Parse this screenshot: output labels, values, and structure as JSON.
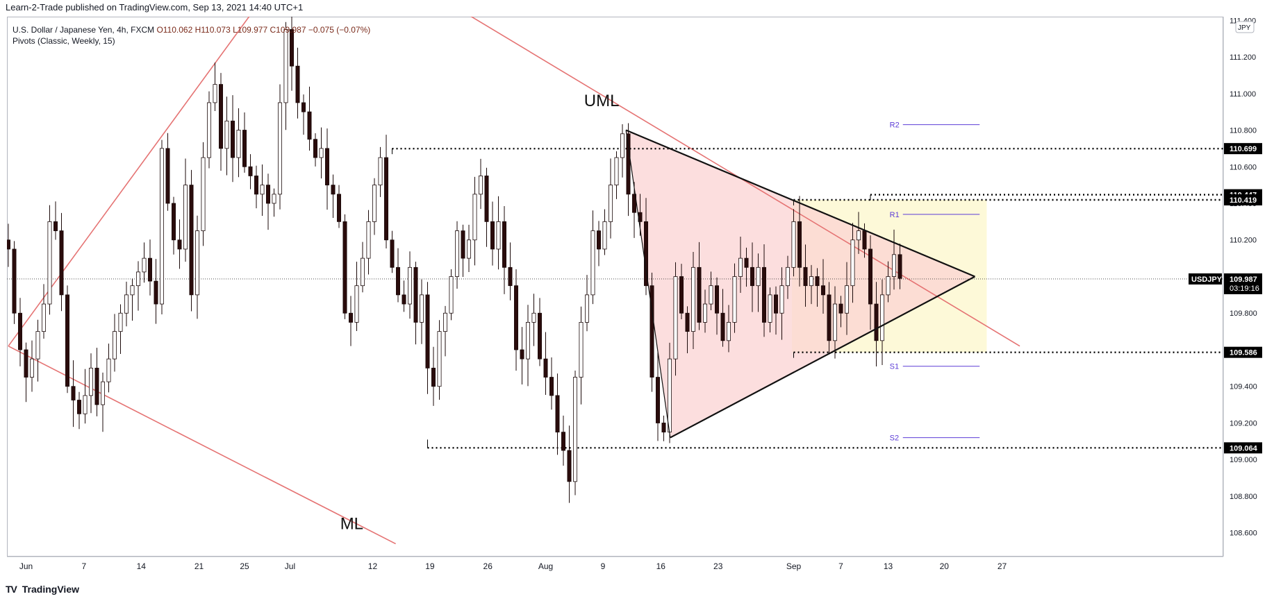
{
  "publisher_line": "Learn-2-Trade published on TradingView.com, Sep 13, 2021 14:40 UTC+1",
  "legend": {
    "symbol_line": "U.S. Dollar / Japanese Yen, 4h, FXCM",
    "ohlc_line": "O110.062  H110.073  L109.977  C109.987  −0.075 (−0.07%)",
    "indicator_line": "Pivots (Classic, Weekly, 15)"
  },
  "currency_badge": "JPY",
  "footer": {
    "logo_glyph": "TV",
    "brand": "TradingView"
  },
  "annotations": {
    "upper_median_line": "UML",
    "median_line": "ML"
  },
  "colors": {
    "bull": "#ffffff",
    "bear": "#2a0c0c",
    "wick": "#1b0a0a",
    "channel": "#e57373",
    "triangle_fill": "#fbd3d3",
    "box_fill": "#fdf9d8",
    "pivot": "#5b3bd6",
    "price_tag": "#000000"
  },
  "chart_data": {
    "type": "candlestick",
    "symbol": "USDJPY",
    "timeframe": "4h",
    "y_range": [
      108.47,
      111.42
    ],
    "y_ticks": [
      "108.600",
      "108.800",
      "109.000",
      "109.200",
      "109.400",
      "109.600",
      "109.800",
      "110.000",
      "110.200",
      "110.400",
      "110.600",
      "110.800",
      "111.000",
      "111.200"
    ],
    "top_tick_partial": "111.400",
    "x_labels": [
      {
        "label": "Jun",
        "t": 3.0
      },
      {
        "label": "7",
        "t": 12.8
      },
      {
        "label": "14",
        "t": 22.5
      },
      {
        "label": "21",
        "t": 32.3
      },
      {
        "label": "25",
        "t": 40.0
      },
      {
        "label": "Jul",
        "t": 47.7
      },
      {
        "label": "12",
        "t": 61.7
      },
      {
        "label": "19",
        "t": 71.4
      },
      {
        "label": "26",
        "t": 81.2
      },
      {
        "label": "Aug",
        "t": 91.0
      },
      {
        "label": "9",
        "t": 100.7
      },
      {
        "label": "16",
        "t": 110.5
      },
      {
        "label": "23",
        "t": 120.2
      },
      {
        "label": "Sep",
        "t": 133.0
      },
      {
        "label": "7",
        "t": 141.0
      },
      {
        "label": "13",
        "t": 149.0
      },
      {
        "label": "20",
        "t": 158.5
      },
      {
        "label": "27",
        "t": 168.3
      }
    ],
    "keypoints": [
      [
        0,
        110.15
      ],
      [
        1,
        109.8
      ],
      [
        2,
        109.6
      ],
      [
        3,
        109.45
      ],
      [
        4,
        109.55
      ],
      [
        6,
        109.85
      ],
      [
        7,
        110.3
      ],
      [
        8,
        110.25
      ],
      [
        9,
        109.9
      ],
      [
        10,
        109.4
      ],
      [
        12,
        109.25
      ],
      [
        13,
        109.35
      ],
      [
        14,
        109.5
      ],
      [
        15,
        109.3
      ],
      [
        17,
        109.55
      ],
      [
        18,
        109.7
      ],
      [
        20,
        109.9
      ],
      [
        21,
        109.95
      ],
      [
        23,
        110.1
      ],
      [
        25,
        109.85
      ],
      [
        26,
        110.7
      ],
      [
        27,
        110.4
      ],
      [
        28,
        110.2
      ],
      [
        29,
        110.15
      ],
      [
        30,
        110.5
      ],
      [
        31,
        109.9
      ],
      [
        32,
        110.25
      ],
      [
        33,
        110.65
      ],
      [
        34,
        110.95
      ],
      [
        35,
        111.05
      ],
      [
        36,
        110.7
      ],
      [
        37,
        110.85
      ],
      [
        38,
        110.65
      ],
      [
        39,
        110.8
      ],
      [
        40,
        110.6
      ],
      [
        41,
        110.55
      ],
      [
        42,
        110.45
      ],
      [
        43,
        110.5
      ],
      [
        44,
        110.4
      ],
      [
        45,
        110.45
      ],
      [
        46,
        110.95
      ],
      [
        47,
        111.35
      ],
      [
        48,
        111.15
      ],
      [
        49,
        110.95
      ],
      [
        50,
        110.9
      ],
      [
        51,
        110.75
      ],
      [
        52,
        110.65
      ],
      [
        53,
        110.7
      ],
      [
        54,
        110.5
      ],
      [
        55,
        110.45
      ],
      [
        56,
        110.3
      ],
      [
        57,
        109.8
      ],
      [
        58,
        109.75
      ],
      [
        59,
        109.95
      ],
      [
        60,
        110.1
      ],
      [
        61,
        110.3
      ],
      [
        62,
        110.5
      ],
      [
        63,
        110.65
      ],
      [
        64,
        110.2
      ],
      [
        66,
        109.9
      ],
      [
        67,
        109.85
      ],
      [
        68,
        110.05
      ],
      [
        69,
        109.75
      ],
      [
        70,
        109.9
      ],
      [
        71,
        109.5
      ],
      [
        72,
        109.4
      ],
      [
        73,
        109.7
      ],
      [
        74,
        109.8
      ],
      [
        75,
        110.0
      ],
      [
        76,
        110.25
      ],
      [
        77,
        110.1
      ],
      [
        78,
        110.2
      ],
      [
        79,
        110.45
      ],
      [
        80,
        110.55
      ],
      [
        81,
        110.3
      ],
      [
        82,
        110.15
      ],
      [
        83,
        110.3
      ],
      [
        84,
        110.05
      ],
      [
        85,
        109.95
      ],
      [
        86,
        109.6
      ],
      [
        87,
        109.55
      ],
      [
        88,
        109.75
      ],
      [
        89,
        109.8
      ],
      [
        90,
        109.55
      ],
      [
        91,
        109.45
      ],
      [
        92,
        109.35
      ],
      [
        93,
        109.15
      ],
      [
        94,
        109.05
      ],
      [
        95,
        108.88
      ],
      [
        96,
        109.45
      ],
      [
        97,
        109.75
      ],
      [
        98,
        109.9
      ],
      [
        99,
        110.25
      ],
      [
        100,
        110.15
      ],
      [
        101,
        110.3
      ],
      [
        102,
        110.5
      ],
      [
        103,
        110.65
      ],
      [
        104,
        110.78
      ],
      [
        105,
        110.45
      ],
      [
        106,
        110.35
      ],
      [
        107,
        110.3
      ],
      [
        108,
        109.95
      ],
      [
        109,
        109.45
      ],
      [
        110,
        109.2
      ],
      [
        111,
        109.15
      ],
      [
        112,
        109.55
      ],
      [
        113,
        110.0
      ],
      [
        114,
        109.8
      ],
      [
        115,
        109.7
      ],
      [
        116,
        110.05
      ],
      [
        117,
        109.75
      ],
      [
        118,
        109.85
      ],
      [
        119,
        109.95
      ],
      [
        120,
        109.8
      ],
      [
        121,
        109.65
      ],
      [
        122,
        109.75
      ],
      [
        123,
        110.0
      ],
      [
        124,
        110.1
      ],
      [
        125,
        110.05
      ],
      [
        126,
        109.95
      ],
      [
        127,
        110.05
      ],
      [
        128,
        109.75
      ],
      [
        129,
        109.9
      ],
      [
        130,
        109.8
      ],
      [
        131,
        109.95
      ],
      [
        132,
        110.05
      ],
      [
        133,
        110.3
      ],
      [
        134,
        110.05
      ],
      [
        135,
        109.95
      ],
      [
        136,
        110.0
      ],
      [
        137,
        109.95
      ],
      [
        138,
        109.9
      ],
      [
        139,
        109.65
      ],
      [
        140,
        109.85
      ],
      [
        141,
        109.8
      ],
      [
        142,
        109.95
      ],
      [
        143,
        110.2
      ],
      [
        144,
        110.25
      ],
      [
        145,
        110.15
      ],
      [
        146,
        109.85
      ],
      [
        147,
        109.65
      ],
      [
        148,
        109.9
      ],
      [
        149,
        110.0
      ],
      [
        150,
        110.12
      ],
      [
        151,
        109.99
      ]
    ],
    "reference_levels": [
      {
        "value": 110.699,
        "label": "110.699",
        "from_t": 65
      },
      {
        "value": 110.447,
        "label": "110.447",
        "from_t": 146
      },
      {
        "value": 110.419,
        "label": "110.419",
        "from_t": 133
      },
      {
        "value": 109.586,
        "label": "109.586",
        "from_t": 133
      },
      {
        "value": 109.064,
        "label": "109.064",
        "from_t": 71
      }
    ],
    "current_price": {
      "symbol": "USDJPY",
      "value": 109.987,
      "label": "109.987",
      "countdown": "03:19:16"
    },
    "pivots": [
      {
        "name": "R2",
        "value": 110.83
      },
      {
        "name": "R1",
        "value": 110.34
      },
      {
        "name": "S1",
        "value": 109.51
      },
      {
        "name": "S2",
        "value": 109.12
      }
    ],
    "trendlines": {
      "uml": {
        "p1": [
          61.4,
          111.75
        ],
        "p2": [
          171.3,
          109.62
        ]
      },
      "lower_parallel": {
        "p1": [
          0,
          109.62
        ],
        "p2": [
          65.6,
          108.54
        ]
      },
      "upper_rising": {
        "p1": [
          0,
          109.62
        ],
        "p2": [
          45.3,
          111.62
        ]
      },
      "triangle": {
        "apex": [
          104.6,
          110.8
        ],
        "bottom": [
          112.1,
          109.12
        ],
        "tip": [
          163.7,
          110.0
        ]
      }
    },
    "consolidation_box": {
      "t1": 132.7,
      "t2": 165.7,
      "top": 110.419,
      "bottom": 109.586
    }
  }
}
